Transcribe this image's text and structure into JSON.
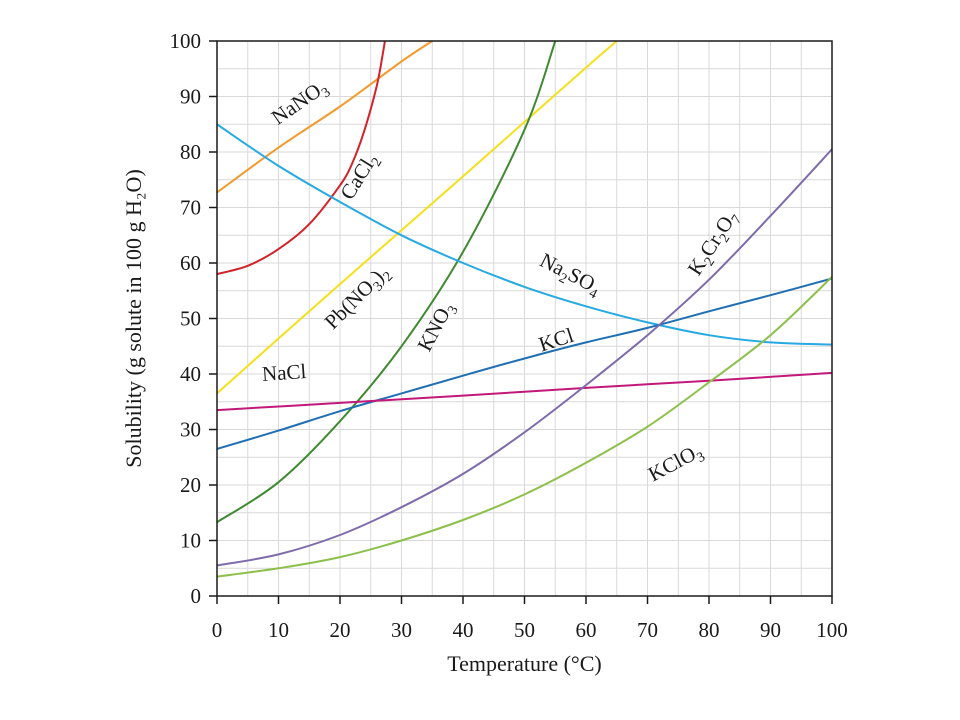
{
  "chart_data": {
    "type": "line",
    "title": "",
    "xlabel": "Temperature (°C)",
    "ylabel": "Solubility (g solute in 100 g H₂O)",
    "xlim": [
      0,
      100
    ],
    "ylim": [
      0,
      100
    ],
    "grid": true,
    "legend": "none",
    "x_ticks": [
      "0",
      "10",
      "20",
      "30",
      "40",
      "50",
      "60",
      "70",
      "80",
      "90",
      "100"
    ],
    "y_ticks": [
      "0",
      "10",
      "20",
      "30",
      "40",
      "50",
      "60",
      "70",
      "80",
      "90",
      "100"
    ],
    "series": [
      {
        "name": "NaNO₃",
        "color": "#f29a2e",
        "points": [
          [
            0,
            72.7
          ],
          [
            10,
            80.8
          ],
          [
            20,
            88.2
          ],
          [
            30,
            96.3
          ],
          [
            35,
            100
          ]
        ]
      },
      {
        "name": "CaCl₂",
        "color": "#d2232a",
        "points": [
          [
            0,
            58
          ],
          [
            5,
            59.5
          ],
          [
            10,
            62.5
          ],
          [
            15,
            67
          ],
          [
            20,
            74
          ],
          [
            22,
            78
          ],
          [
            24,
            84
          ],
          [
            26,
            92
          ],
          [
            27,
            98
          ],
          [
            27.3,
            100
          ]
        ]
      },
      {
        "name": "Pb(NO₃)₂",
        "color": "#f5e01b",
        "points": [
          [
            0,
            36.5
          ],
          [
            10,
            46.4
          ],
          [
            20,
            56.2
          ],
          [
            30,
            65.9
          ],
          [
            40,
            75.6
          ],
          [
            50,
            85.4
          ],
          [
            60,
            95.2
          ],
          [
            65,
            100
          ]
        ]
      },
      {
        "name": "KNO₃",
        "color": "#3f8a30",
        "points": [
          [
            0,
            13.3
          ],
          [
            10,
            20.5
          ],
          [
            20,
            31.5
          ],
          [
            30,
            45
          ],
          [
            40,
            62
          ],
          [
            50,
            84
          ],
          [
            55,
            100
          ]
        ]
      },
      {
        "name": "Na₂SO₄",
        "color": "#27a9e1",
        "points": [
          [
            0,
            85
          ],
          [
            10,
            77.5
          ],
          [
            20,
            71
          ],
          [
            30,
            65
          ],
          [
            40,
            60
          ],
          [
            50,
            55.7
          ],
          [
            60,
            52.2
          ],
          [
            70,
            49.3
          ],
          [
            80,
            47
          ],
          [
            90,
            45.7
          ],
          [
            100,
            45.3
          ]
        ]
      },
      {
        "name": "KCl",
        "color": "#1f6fb2",
        "points": [
          [
            0,
            26.5
          ],
          [
            10,
            29.8
          ],
          [
            20,
            33.3
          ],
          [
            30,
            36.5
          ],
          [
            40,
            39.7
          ],
          [
            50,
            42.8
          ],
          [
            60,
            45.7
          ],
          [
            70,
            48.3
          ],
          [
            80,
            51.3
          ],
          [
            90,
            54.2
          ],
          [
            100,
            57.2
          ]
        ]
      },
      {
        "name": "NaCl",
        "color": "#c2187a",
        "points": [
          [
            0,
            33.5
          ],
          [
            20,
            34.8
          ],
          [
            40,
            36.1
          ],
          [
            60,
            37.5
          ],
          [
            80,
            38.8
          ],
          [
            100,
            40.2
          ]
        ]
      },
      {
        "name": "K₂Cr₂O₇",
        "color": "#7e6bab",
        "points": [
          [
            0,
            5.5
          ],
          [
            10,
            7.5
          ],
          [
            20,
            11
          ],
          [
            30,
            16
          ],
          [
            40,
            22
          ],
          [
            50,
            29.5
          ],
          [
            60,
            38
          ],
          [
            70,
            47
          ],
          [
            80,
            57
          ],
          [
            90,
            68.5
          ],
          [
            100,
            80.5
          ]
        ]
      },
      {
        "name": "KClO₃",
        "color": "#8cc04a",
        "points": [
          [
            0,
            3.5
          ],
          [
            10,
            5
          ],
          [
            20,
            7
          ],
          [
            30,
            10
          ],
          [
            40,
            13.7
          ],
          [
            50,
            18.3
          ],
          [
            60,
            24
          ],
          [
            70,
            30.5
          ],
          [
            80,
            38.5
          ],
          [
            90,
            47
          ],
          [
            100,
            57.5
          ]
        ]
      }
    ],
    "curve_labels": [
      {
        "series": "NaNO₃",
        "x": 14,
        "y": 88,
        "angle": -35
      },
      {
        "series": "CaCl₂",
        "x": 24,
        "y": 75,
        "angle": -58
      },
      {
        "series": "Pb(NO₃)₂",
        "x": 23.5,
        "y": 53,
        "angle": -45
      },
      {
        "series": "KNO₃",
        "x": 36.5,
        "y": 48,
        "angle": -62
      },
      {
        "series": "Na₂SO₄",
        "x": 57,
        "y": 57,
        "angle": 27
      },
      {
        "series": "KCl",
        "x": 55.5,
        "y": 45,
        "angle": -18
      },
      {
        "series": "NaCl",
        "x": 11,
        "y": 39,
        "angle": -4
      },
      {
        "series": "K₂Cr₂O₇",
        "x": 81.5,
        "y": 63,
        "angle": -57
      },
      {
        "series": "KClO₃",
        "x": 75,
        "y": 23,
        "angle": -28
      }
    ]
  }
}
